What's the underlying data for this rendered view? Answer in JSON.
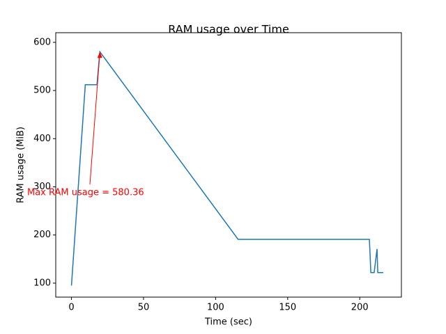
{
  "chart_data": {
    "type": "line",
    "title": "RAM usage over Time",
    "x_label": "Time (sec)",
    "y_label": "RAM usage (MiB)",
    "x": [
      0,
      9.6,
      17.7,
      19.7,
      115.6,
      206.7,
      207.7,
      210,
      212,
      212.5,
      216.3
    ],
    "series": [
      {
        "name": "RAM usage",
        "color": "#1f77b4",
        "values": [
          95,
          512,
          512,
          580.36,
          191,
          191,
          122,
          122,
          171,
          122,
          122
        ]
      }
    ],
    "annotation": "Max RAM usage = 580.36",
    "annotation_color": "#ff0000",
    "xlim": [
      -10.9,
      228.9
    ],
    "xticks": [
      0,
      50,
      100,
      150,
      200
    ],
    "ylim": [
      71,
      620
    ],
    "yticks": [
      100,
      200,
      300,
      400,
      500,
      600
    ],
    "grid": false
  }
}
